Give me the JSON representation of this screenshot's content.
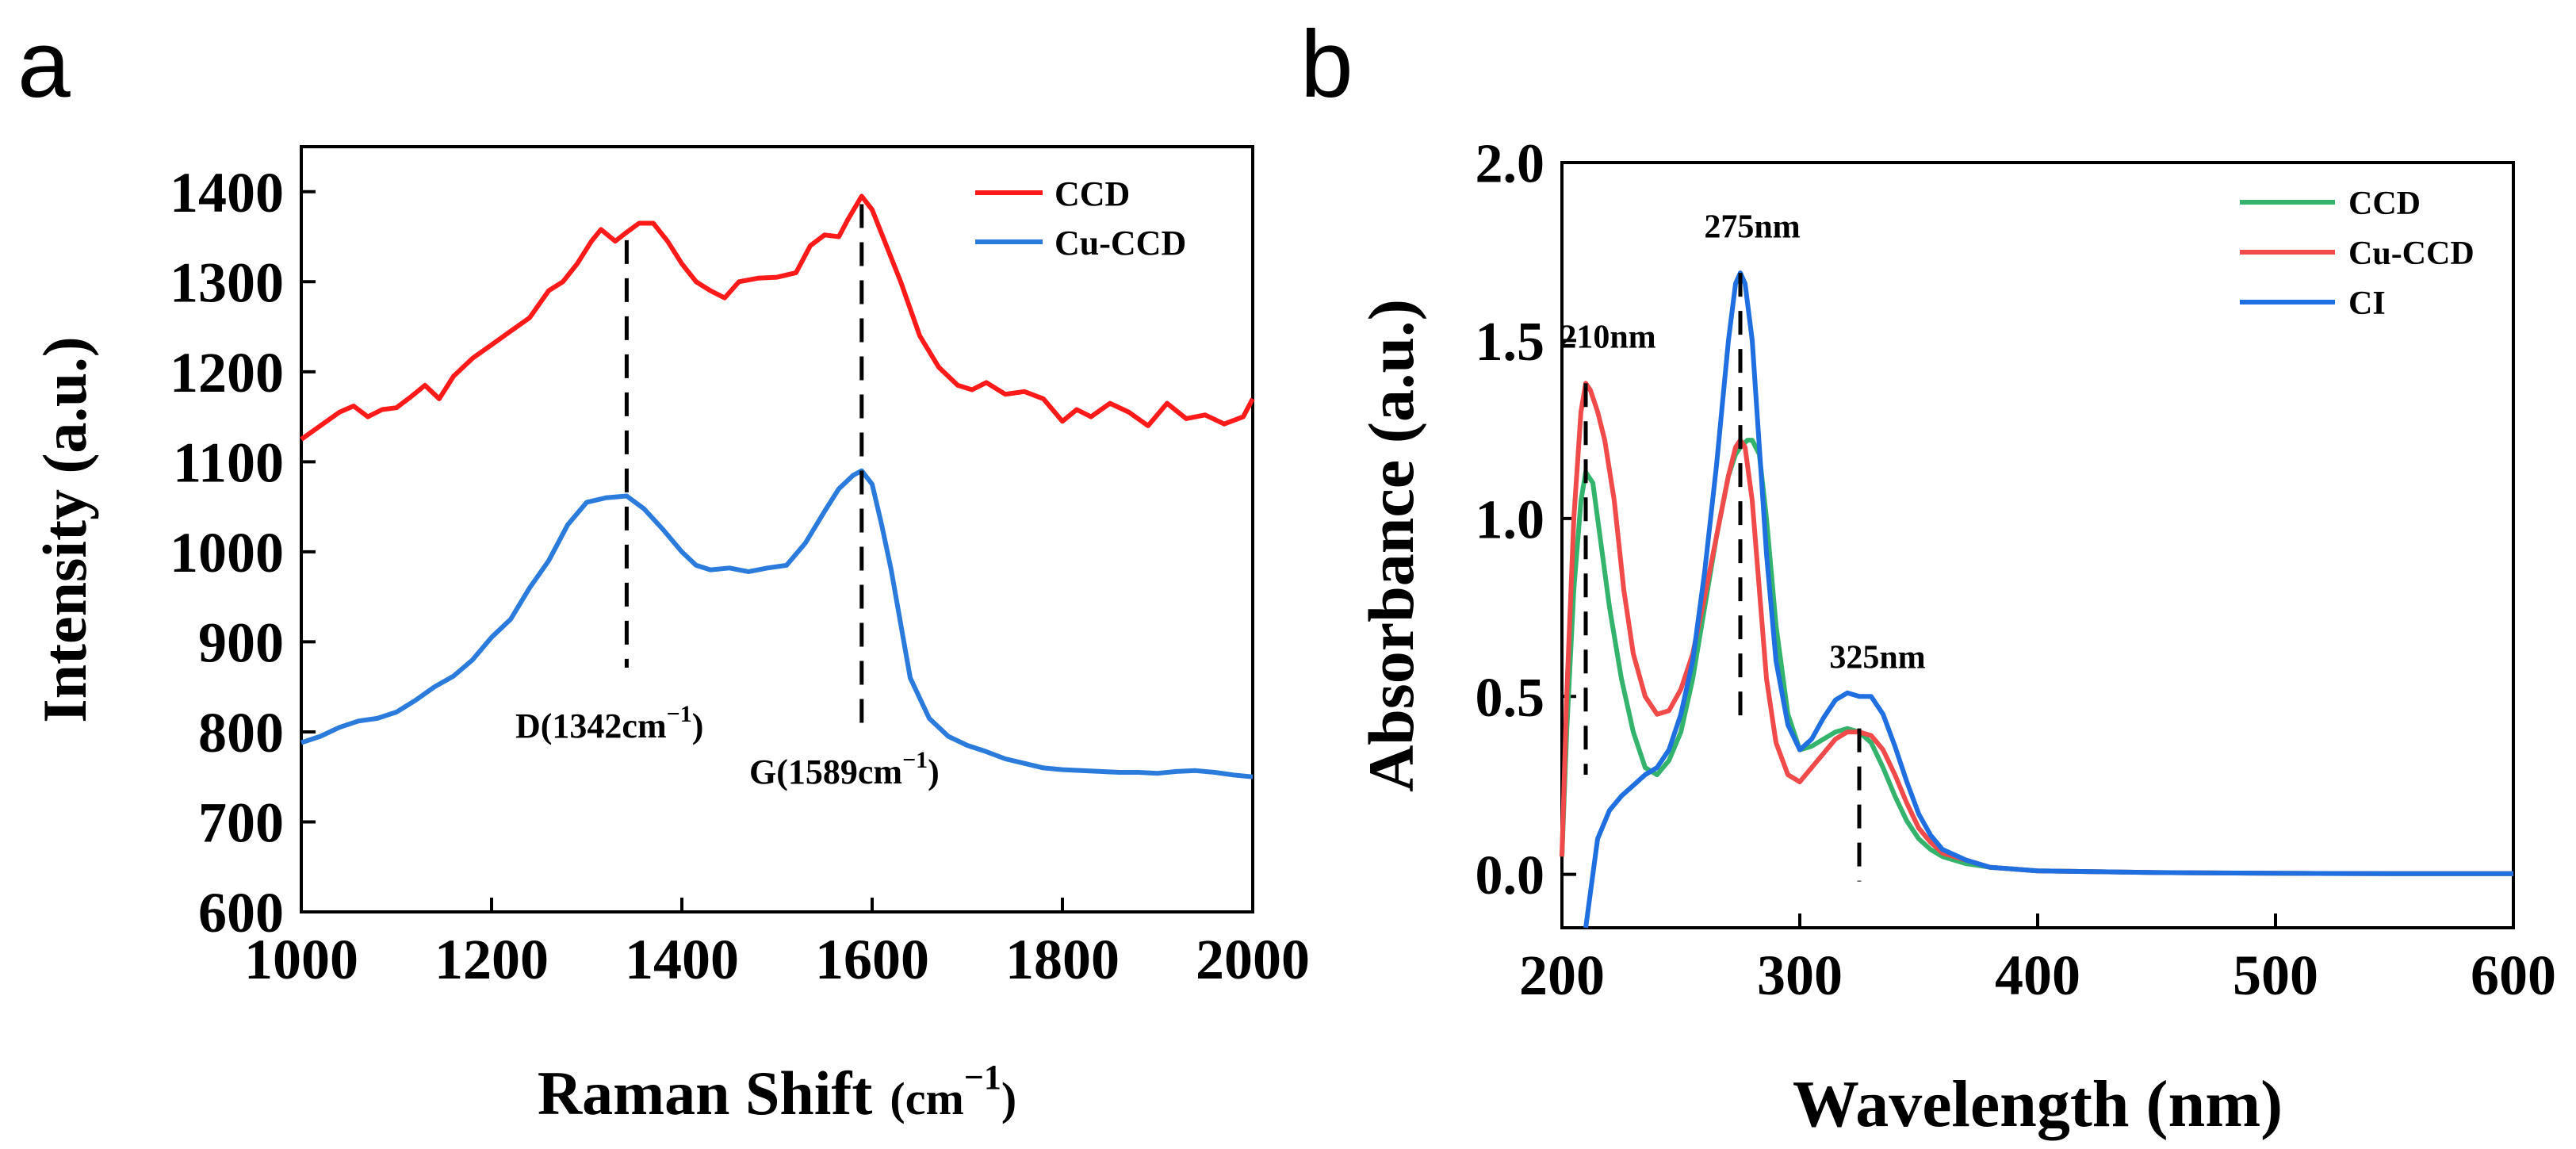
{
  "chart_data": [
    {
      "panel_label": "a",
      "type": "line",
      "title": "",
      "xlabel": "Raman Shift",
      "xlabel_unit": "(cm",
      "xlabel_unit_exp": "−1",
      "xlabel_unit_close": ")",
      "ylabel": "Intensity (a.u.)",
      "xlim": [
        1000,
        2000
      ],
      "ylim": [
        600,
        1450
      ],
      "xticks": [
        "1000",
        "1200",
        "1400",
        "1600",
        "1800",
        "2000"
      ],
      "yticks": [
        "600",
        "700",
        "800",
        "900",
        "1000",
        "1100",
        "1200",
        "1300",
        "1400"
      ],
      "grid": false,
      "legend": "top-right",
      "series": [
        {
          "name": "CCD",
          "color": "#ff1a1a",
          "x": [
            1000,
            1020,
            1040,
            1055,
            1070,
            1085,
            1100,
            1115,
            1130,
            1145,
            1160,
            1180,
            1200,
            1220,
            1240,
            1260,
            1275,
            1290,
            1305,
            1315,
            1330,
            1342,
            1355,
            1370,
            1385,
            1400,
            1415,
            1430,
            1445,
            1460,
            1480,
            1500,
            1520,
            1535,
            1550,
            1565,
            1575,
            1589,
            1600,
            1615,
            1630,
            1650,
            1670,
            1690,
            1705,
            1720,
            1740,
            1760,
            1780,
            1800,
            1815,
            1830,
            1850,
            1870,
            1890,
            1910,
            1930,
            1950,
            1970,
            1990,
            2000
          ],
          "y": [
            1125,
            1140,
            1155,
            1162,
            1150,
            1158,
            1160,
            1172,
            1185,
            1170,
            1195,
            1215,
            1230,
            1245,
            1260,
            1290,
            1300,
            1320,
            1345,
            1358,
            1345,
            1355,
            1365,
            1365,
            1345,
            1320,
            1300,
            1290,
            1282,
            1300,
            1304,
            1305,
            1310,
            1340,
            1352,
            1350,
            1370,
            1395,
            1380,
            1340,
            1300,
            1240,
            1205,
            1185,
            1180,
            1188,
            1175,
            1178,
            1170,
            1145,
            1158,
            1150,
            1165,
            1155,
            1140,
            1165,
            1148,
            1152,
            1142,
            1150,
            1170
          ]
        },
        {
          "name": "Cu-CCD",
          "color": "#2a7bdb",
          "x": [
            1000,
            1020,
            1040,
            1060,
            1080,
            1100,
            1120,
            1140,
            1160,
            1180,
            1200,
            1220,
            1240,
            1260,
            1280,
            1300,
            1320,
            1342,
            1360,
            1380,
            1400,
            1415,
            1430,
            1450,
            1470,
            1490,
            1510,
            1530,
            1550,
            1565,
            1580,
            1589,
            1600,
            1610,
            1620,
            1630,
            1640,
            1660,
            1680,
            1700,
            1720,
            1740,
            1760,
            1780,
            1800,
            1820,
            1840,
            1860,
            1880,
            1900,
            1920,
            1940,
            1960,
            1980,
            2000
          ],
          "y": [
            788,
            795,
            805,
            812,
            815,
            822,
            835,
            850,
            862,
            880,
            905,
            925,
            960,
            990,
            1030,
            1055,
            1060,
            1062,
            1048,
            1025,
            1000,
            985,
            980,
            982,
            978,
            982,
            985,
            1010,
            1045,
            1070,
            1085,
            1090,
            1075,
            1030,
            980,
            920,
            860,
            815,
            795,
            785,
            778,
            770,
            765,
            760,
            758,
            757,
            756,
            755,
            755,
            754,
            756,
            757,
            755,
            752,
            750
          ]
        }
      ],
      "annotations": [
        {
          "text": "D(1342cm",
          "sup": "−1",
          "close": ")",
          "x": 1342
        },
        {
          "text": "G(1589cm",
          "sup": "−1",
          "close": ")",
          "x": 1589
        }
      ]
    },
    {
      "panel_label": "b",
      "type": "line",
      "title": "",
      "xlabel": "Wavelength (nm)",
      "ylabel": "Absorbance (a.u.)",
      "xlim": [
        200,
        600
      ],
      "ylim": [
        -0.15,
        2.0
      ],
      "xticks": [
        "200",
        "300",
        "400",
        "500",
        "600"
      ],
      "yticks": [
        "0.0",
        "0.5",
        "1.0",
        "1.5",
        "2.0"
      ],
      "grid": false,
      "legend": "top-right",
      "series": [
        {
          "name": "CCD",
          "color": "#33b36b",
          "x": [
            200,
            202,
            205,
            208,
            210,
            213,
            216,
            220,
            225,
            230,
            235,
            240,
            245,
            250,
            255,
            260,
            265,
            270,
            273,
            275,
            278,
            280,
            283,
            286,
            290,
            295,
            300,
            305,
            310,
            315,
            320,
            325,
            330,
            335,
            340,
            345,
            350,
            355,
            360,
            370,
            380,
            400,
            450,
            500,
            550,
            600
          ],
          "y": [
            0.05,
            0.4,
            0.8,
            1.05,
            1.13,
            1.1,
            0.95,
            0.75,
            0.55,
            0.4,
            0.3,
            0.28,
            0.32,
            0.4,
            0.55,
            0.75,
            0.95,
            1.12,
            1.18,
            1.2,
            1.22,
            1.22,
            1.18,
            1.0,
            0.7,
            0.45,
            0.35,
            0.36,
            0.38,
            0.4,
            0.41,
            0.4,
            0.37,
            0.3,
            0.22,
            0.15,
            0.1,
            0.07,
            0.05,
            0.03,
            0.02,
            0.01,
            0.005,
            0.003,
            0.002,
            0.002
          ]
        },
        {
          "name": "Cu-CCD",
          "color": "#f04a4a",
          "x": [
            200,
            202,
            205,
            208,
            210,
            212,
            215,
            218,
            222,
            226,
            230,
            235,
            240,
            245,
            250,
            255,
            260,
            265,
            270,
            273,
            275,
            277,
            280,
            283,
            286,
            290,
            295,
            300,
            305,
            310,
            315,
            320,
            325,
            330,
            335,
            340,
            345,
            350,
            355,
            360,
            370,
            380,
            400,
            450,
            500,
            550,
            600
          ],
          "y": [
            0.05,
            0.5,
            1.0,
            1.3,
            1.38,
            1.36,
            1.3,
            1.22,
            1.05,
            0.8,
            0.62,
            0.5,
            0.45,
            0.46,
            0.52,
            0.62,
            0.78,
            0.95,
            1.12,
            1.2,
            1.22,
            1.2,
            1.05,
            0.8,
            0.55,
            0.37,
            0.28,
            0.26,
            0.3,
            0.34,
            0.38,
            0.4,
            0.4,
            0.39,
            0.35,
            0.28,
            0.2,
            0.13,
            0.09,
            0.06,
            0.04,
            0.02,
            0.01,
            0.005,
            0.003,
            0.002,
            0.002
          ]
        },
        {
          "name": "CI",
          "color": "#1f6fe0",
          "x": [
            210,
            215,
            220,
            225,
            230,
            235,
            240,
            245,
            250,
            255,
            260,
            265,
            270,
            273,
            275,
            277,
            280,
            283,
            286,
            290,
            295,
            300,
            305,
            310,
            315,
            320,
            325,
            330,
            335,
            340,
            345,
            350,
            355,
            360,
            370,
            380,
            400,
            450,
            500,
            550,
            600
          ],
          "y": [
            -0.15,
            0.1,
            0.18,
            0.22,
            0.25,
            0.28,
            0.3,
            0.35,
            0.45,
            0.6,
            0.85,
            1.15,
            1.5,
            1.66,
            1.69,
            1.66,
            1.5,
            1.2,
            0.9,
            0.6,
            0.42,
            0.35,
            0.38,
            0.44,
            0.49,
            0.51,
            0.5,
            0.5,
            0.45,
            0.36,
            0.26,
            0.17,
            0.11,
            0.07,
            0.04,
            0.02,
            0.01,
            0.005,
            0.003,
            0.002,
            0.002
          ]
        }
      ],
      "annotations": [
        {
          "text": "210nm",
          "x": 210
        },
        {
          "text": "275nm",
          "x": 275
        },
        {
          "text": "325nm",
          "x": 325
        }
      ]
    }
  ]
}
